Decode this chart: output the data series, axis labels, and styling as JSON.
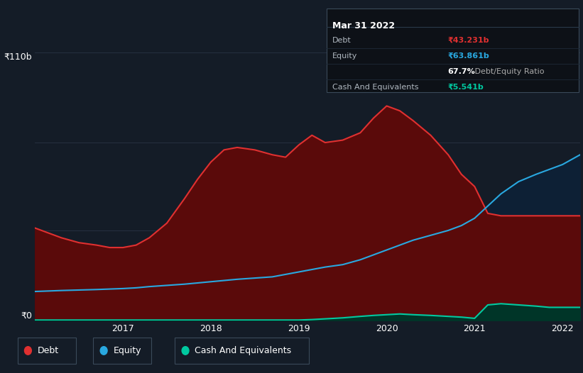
{
  "bg_color": "#141c27",
  "grid_color": "#263040",
  "debt_color": "#e03030",
  "equity_color": "#29a8e0",
  "cash_color": "#00c9a0",
  "debt_fill_color": "#5a0a0a",
  "equity_fill_color": "#0d2035",
  "cash_fill_color": "#003528",
  "ylim": [
    0,
    110
  ],
  "tooltip_bg": "#0d1117",
  "tooltip_border": "#3a4a5a",
  "legend": [
    {
      "label": "Debt",
      "color": "#e03030"
    },
    {
      "label": "Equity",
      "color": "#29a8e0"
    },
    {
      "label": "Cash And Equivalents",
      "color": "#00c9a0"
    }
  ],
  "x": [
    2016.0,
    2016.15,
    2016.3,
    2016.5,
    2016.7,
    2016.85,
    2017.0,
    2017.15,
    2017.3,
    2017.5,
    2017.7,
    2017.85,
    2018.0,
    2018.15,
    2018.3,
    2018.5,
    2018.7,
    2018.85,
    2019.0,
    2019.15,
    2019.3,
    2019.5,
    2019.7,
    2019.85,
    2020.0,
    2020.15,
    2020.3,
    2020.5,
    2020.7,
    2020.85,
    2021.0,
    2021.15,
    2021.3,
    2021.5,
    2021.7,
    2021.85,
    2022.0,
    2022.2
  ],
  "debt": [
    38,
    36,
    34,
    32,
    31,
    30,
    30,
    31,
    34,
    40,
    50,
    58,
    65,
    70,
    71,
    70,
    68,
    67,
    72,
    76,
    73,
    74,
    77,
    83,
    88,
    86,
    82,
    76,
    68,
    60,
    55,
    44,
    43,
    43,
    43,
    43,
    43,
    43
  ],
  "equity": [
    12,
    12.2,
    12.4,
    12.6,
    12.8,
    13,
    13.2,
    13.5,
    14,
    14.5,
    15,
    15.5,
    16,
    16.5,
    17,
    17.5,
    18,
    19,
    20,
    21,
    22,
    23,
    25,
    27,
    29,
    31,
    33,
    35,
    37,
    39,
    42,
    47,
    52,
    57,
    60,
    62,
    64,
    68
  ],
  "cash": [
    0.3,
    0.3,
    0.3,
    0.3,
    0.3,
    0.3,
    0.3,
    0.3,
    0.3,
    0.3,
    0.3,
    0.3,
    0.3,
    0.3,
    0.3,
    0.3,
    0.3,
    0.3,
    0.3,
    0.5,
    0.8,
    1.2,
    1.8,
    2.2,
    2.5,
    2.8,
    2.5,
    2.2,
    1.8,
    1.5,
    1.0,
    6.5,
    7.0,
    6.5,
    6.0,
    5.5,
    5.5,
    5.5
  ],
  "tooltip": {
    "title": "Mar 31 2022",
    "rows": [
      {
        "label": "Debt",
        "value": "₹43.231b",
        "value_color": "#e03030"
      },
      {
        "label": "Equity",
        "value": "₹63.861b",
        "value_color": "#29a8e0"
      },
      {
        "label": "",
        "value": "67.7%",
        "value_color": "#ffffff",
        "suffix": " Debt/Equity Ratio",
        "suffix_color": "#aaaaaa"
      },
      {
        "label": "Cash And Equivalents",
        "value": "₹5.541b",
        "value_color": "#00c9a0"
      }
    ]
  }
}
